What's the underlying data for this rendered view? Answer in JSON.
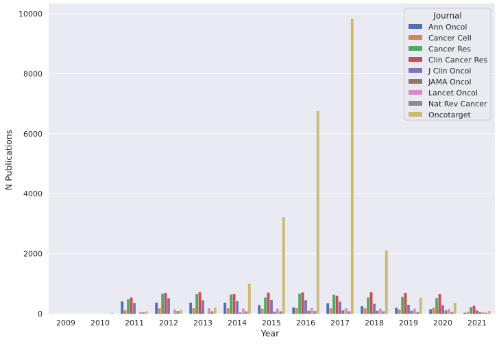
{
  "chart_data": {
    "type": "bar",
    "xlabel": "Year",
    "ylabel": "N Publications",
    "ylim": [
      0,
      10000
    ],
    "yticks": [
      0,
      2000,
      4000,
      6000,
      8000,
      10000
    ],
    "grid": true,
    "legend_title": "Journal",
    "legend_position": "top-right",
    "categories": [
      "2009",
      "2010",
      "2011",
      "2012",
      "2013",
      "2014",
      "2015",
      "2016",
      "2017",
      "2018",
      "2019",
      "2020",
      "2021"
    ],
    "series": [
      {
        "name": "Ann Oncol",
        "color": "#4c72b0",
        "values": [
          0,
          0,
          410,
          370,
          370,
          370,
          290,
          210,
          350,
          250,
          200,
          150,
          30
        ]
      },
      {
        "name": "Cancer Cell",
        "color": "#dd8452",
        "values": [
          0,
          0,
          120,
          180,
          180,
          180,
          170,
          190,
          180,
          180,
          140,
          200,
          60
        ]
      },
      {
        "name": "Cancer Res",
        "color": "#55a868",
        "values": [
          0,
          0,
          480,
          670,
          660,
          640,
          540,
          670,
          630,
          540,
          560,
          520,
          220
        ]
      },
      {
        "name": "Clin Cancer Res",
        "color": "#c44e52",
        "values": [
          0,
          0,
          540,
          690,
          720,
          660,
          700,
          710,
          600,
          720,
          690,
          660,
          260
        ]
      },
      {
        "name": "J Clin Oncol",
        "color": "#8172b3",
        "values": [
          0,
          0,
          360,
          520,
          450,
          420,
          460,
          450,
          400,
          330,
          300,
          290,
          110
        ]
      },
      {
        "name": "JAMA Oncol",
        "color": "#937860",
        "values": [
          0,
          0,
          0,
          0,
          0,
          40,
          70,
          100,
          110,
          100,
          100,
          110,
          50
        ]
      },
      {
        "name": "Lancet Oncol",
        "color": "#da8bc3",
        "values": [
          0,
          0,
          60,
          140,
          180,
          170,
          170,
          180,
          180,
          170,
          170,
          160,
          60
        ]
      },
      {
        "name": "Nat Rev Cancer",
        "color": "#8c8c8c",
        "values": [
          0,
          0,
          50,
          90,
          80,
          80,
          80,
          90,
          80,
          80,
          60,
          60,
          30
        ]
      },
      {
        "name": "Oncotarget",
        "color": "#ccb974",
        "values": [
          0,
          20,
          80,
          130,
          200,
          1000,
          3220,
          6760,
          9830,
          2110,
          530,
          360,
          90
        ]
      }
    ]
  }
}
